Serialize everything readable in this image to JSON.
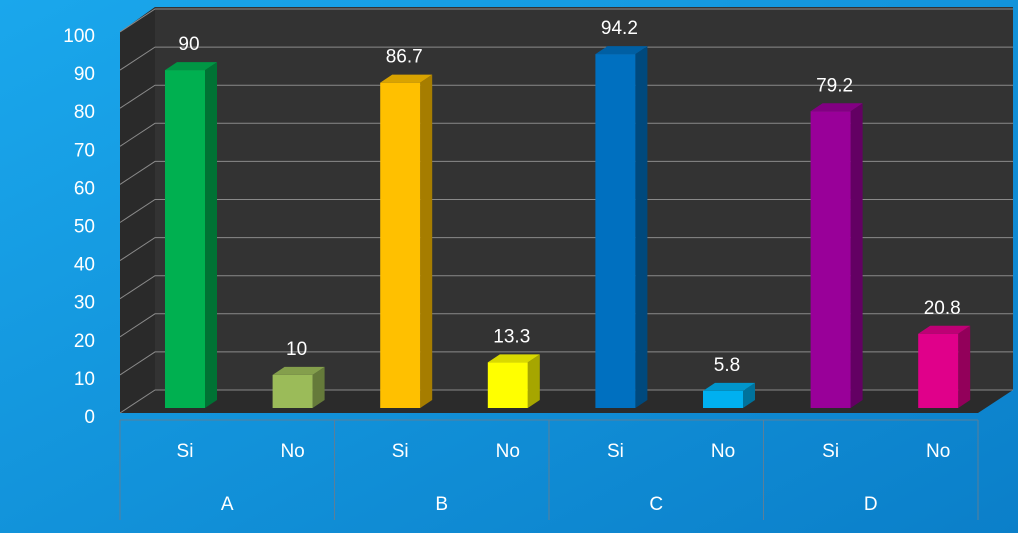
{
  "chart_data": {
    "type": "bar3d",
    "categories": [
      "Si",
      "No",
      "Si",
      "No",
      "Si",
      "No",
      "Si",
      "No"
    ],
    "groups": [
      "A",
      "B",
      "C",
      "D"
    ],
    "values": [
      90,
      10,
      86.7,
      13.3,
      94.2,
      5.8,
      79.2,
      20.8
    ],
    "colors": [
      "#00b050",
      "#9bbb59",
      "#ffc000",
      "#ffff00",
      "#0070c0",
      "#00b0f0",
      "#990099",
      "#e0008a"
    ],
    "ylim": [
      0,
      100
    ],
    "yticks": [
      0,
      10,
      20,
      30,
      40,
      50,
      60,
      70,
      80,
      90,
      100
    ],
    "grid": true
  }
}
